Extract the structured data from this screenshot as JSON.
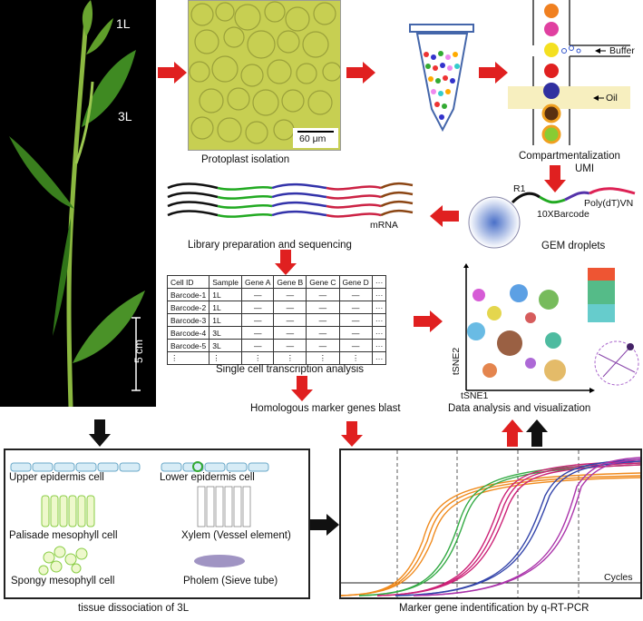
{
  "plant": {
    "label_1l": "1L",
    "label_3l": "3L",
    "scale": "5 cm"
  },
  "protoplast": {
    "scale": "60 μm",
    "caption": "Protoplast isolation"
  },
  "compart": {
    "buffer": "Buffer",
    "oil": "Oil",
    "caption": "Compartmentalization"
  },
  "gem": {
    "r1": "R1",
    "umi": "UMI",
    "barcode": "10XBarcode",
    "polydt": "Poly(dT)VN",
    "caption": "GEM droplets"
  },
  "library": {
    "mrna": "mRNA",
    "caption": "Library preparation and sequencing"
  },
  "table": {
    "headers": [
      "Cell ID",
      "Sample",
      "Gene A",
      "Gene B",
      "Gene C",
      "Gene D",
      "···"
    ],
    "rows": [
      [
        "Barcode-1",
        "1L",
        "—",
        "—",
        "—",
        "—",
        "···"
      ],
      [
        "Barcode-2",
        "1L",
        "—",
        "—",
        "—",
        "—",
        "···"
      ],
      [
        "Barcode-3",
        "1L",
        "—",
        "—",
        "—",
        "—",
        "···"
      ],
      [
        "Barcode-4",
        "3L",
        "—",
        "—",
        "—",
        "—",
        "···"
      ],
      [
        "Barcode-5",
        "3L",
        "—",
        "—",
        "—",
        "—",
        "···"
      ],
      [
        "⋮",
        "⋮",
        "⋮",
        "⋮",
        "⋮",
        "⋮",
        "···"
      ]
    ],
    "caption": "Single cell transcription analysis"
  },
  "homologous": "Homologous marker genes blast",
  "tsne": {
    "x": "tSNE1",
    "y": "tSNE2",
    "caption": "Data analysis and visualization"
  },
  "tissue": {
    "upper": "Upper epidermis cell",
    "lower": "Lower epidermis cell",
    "palisade": "Palisade mesophyll cell",
    "xylem": "Xylem (Vessel element)",
    "spongy": "Spongy mesophyll cell",
    "pholem": "Pholem (Sieve tube)",
    "caption": "tissue dissociation of 3L"
  },
  "qpcr": {
    "cycles": "Cycles",
    "caption": "Marker gene indentification by q-RT-PCR"
  },
  "colors": {
    "arrow_red": "#e02020",
    "arrow_black": "#111111",
    "protoplast": "#c7cf52"
  }
}
